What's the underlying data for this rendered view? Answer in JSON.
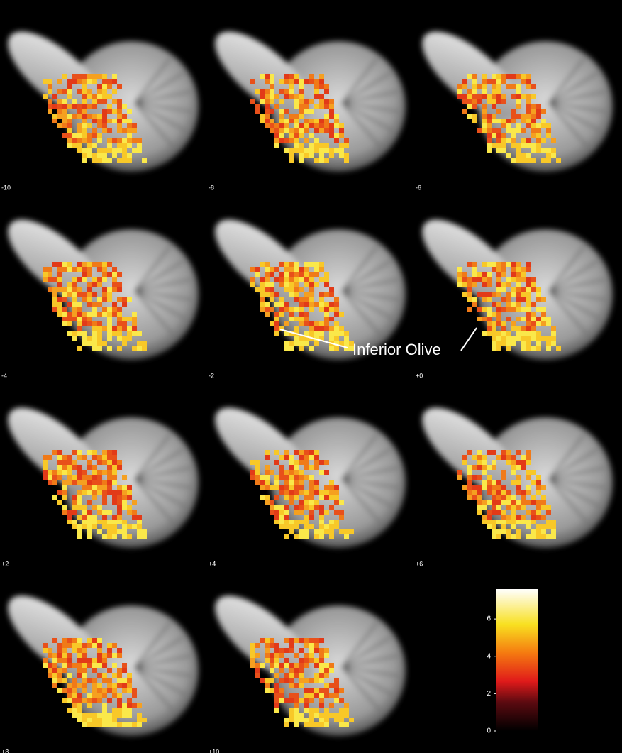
{
  "slices": [
    "-10",
    "-8",
    "-6",
    "-4",
    "-2",
    "+0",
    "+2",
    "+4",
    "+6",
    "+8",
    "+10"
  ],
  "annotation": "Inferior Olive",
  "colorbar": {
    "ylim": [
      0,
      7.6
    ],
    "yticks": [
      0,
      2,
      4,
      6
    ]
  }
}
